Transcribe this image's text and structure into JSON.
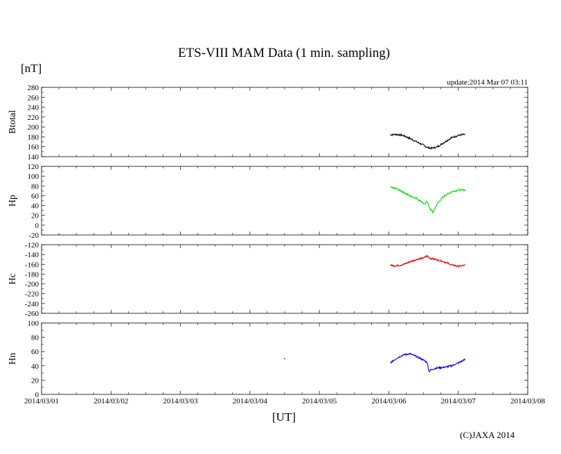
{
  "header": {
    "title": "ETS-VIII MAM Data (1 min. sampling)",
    "y_unit": "[nT]",
    "update": "update:2014 Mar 07 03:11"
  },
  "footer": {
    "x_unit": "[UT]",
    "copyright": "(C)JAXA 2014"
  },
  "chart_data": {
    "type": "line",
    "title": "ETS-VIII MAM Data (1 min. sampling)",
    "xlabel": "[UT]",
    "ylabel": "[nT]",
    "x_unit": "days since 2014/03/01 00:00 UT",
    "xlim": [
      0,
      7
    ],
    "x_ticks": [
      "2014/03/01",
      "2014/03/02",
      "2014/03/03",
      "2014/03/04",
      "2014/03/05",
      "2014/03/06",
      "2014/03/07",
      "2014/03/08"
    ],
    "panels": [
      {
        "name": "Btotal",
        "color": "#000000",
        "ylim": [
          140,
          280
        ],
        "yticks": [
          "280",
          "260",
          "240",
          "220",
          "200",
          "180",
          "160",
          "140"
        ],
        "x": [
          5.02,
          5.1,
          5.2,
          5.3,
          5.4,
          5.5,
          5.55,
          5.6,
          5.65,
          5.7,
          5.8,
          5.9,
          6.0,
          6.1
        ],
        "y": [
          184,
          185,
          183,
          177,
          170,
          163,
          159,
          157,
          158,
          160,
          169,
          178,
          183,
          185
        ]
      },
      {
        "name": "Hp",
        "color": "#00dd00",
        "ylim": [
          -20,
          120
        ],
        "yticks": [
          "120",
          "100",
          "80",
          "60",
          "40",
          "20",
          "0",
          "-20"
        ],
        "x": [
          5.02,
          5.1,
          5.2,
          5.3,
          5.4,
          5.48,
          5.52,
          5.55,
          5.58,
          5.6,
          5.63,
          5.65,
          5.7,
          5.8,
          5.9,
          6.0,
          6.1
        ],
        "y": [
          77,
          75,
          68,
          60,
          55,
          47,
          42,
          50,
          38,
          32,
          27,
          30,
          45,
          60,
          68,
          72,
          72
        ]
      },
      {
        "name": "Hc",
        "color": "#ee0000",
        "ylim": [
          -260,
          -120
        ],
        "yticks": [
          "-120",
          "-140",
          "-160",
          "-180",
          "-200",
          "-220",
          "-240",
          "-260"
        ],
        "x": [
          5.02,
          5.1,
          5.2,
          5.3,
          5.4,
          5.5,
          5.55,
          5.6,
          5.7,
          5.8,
          5.9,
          6.0,
          6.1
        ],
        "y": [
          -162,
          -163,
          -161,
          -155,
          -150,
          -147,
          -143,
          -148,
          -151,
          -155,
          -161,
          -164,
          -162
        ]
      },
      {
        "name": "Hn",
        "color": "#0000dd",
        "ylim": [
          0,
          100
        ],
        "yticks": [
          "100",
          "80",
          "60",
          "40",
          "20",
          "0"
        ],
        "x": [
          5.02,
          5.1,
          5.2,
          5.3,
          5.4,
          5.5,
          5.55,
          5.58,
          5.6,
          5.65,
          5.7,
          5.8,
          5.9,
          6.0,
          6.1
        ],
        "y": [
          44,
          50,
          55,
          57,
          53,
          48,
          45,
          32,
          34,
          36,
          37,
          38,
          40,
          44,
          49
        ],
        "outliers": [
          {
            "x": 3.5,
            "y": 50
          }
        ]
      }
    ]
  }
}
